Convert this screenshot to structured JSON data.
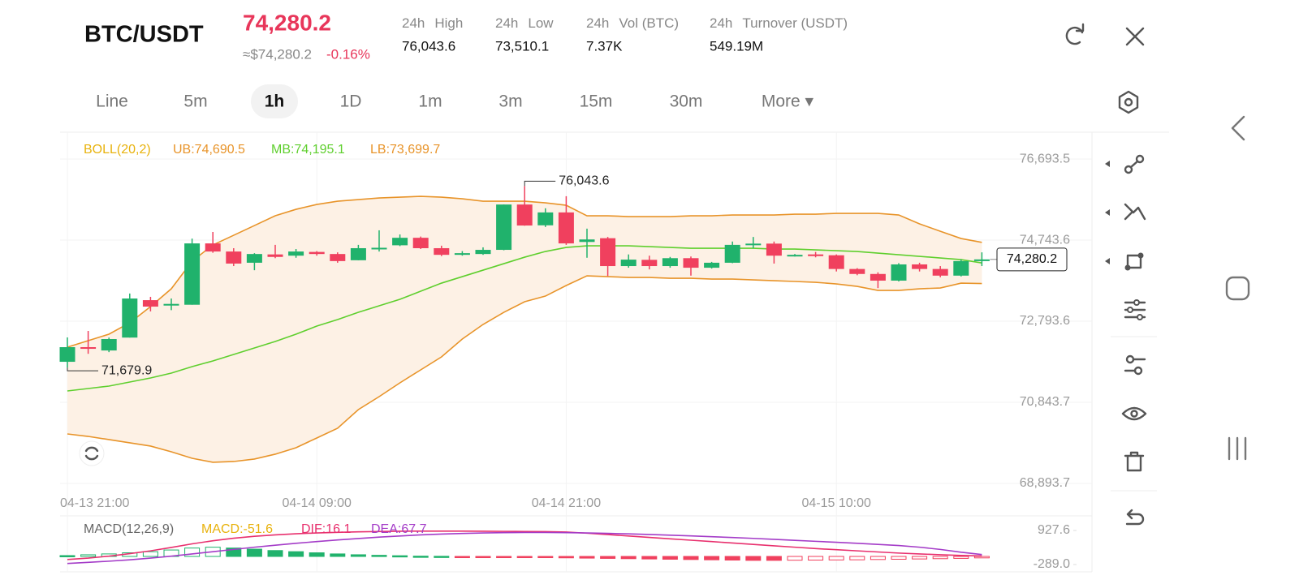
{
  "header": {
    "pair": "BTC/USDT",
    "price": "74,280.2",
    "approx": "≈$74,280.2",
    "change": "-0.16%",
    "stats": [
      {
        "label": "24h",
        "name": "High",
        "value": "76,043.6"
      },
      {
        "label": "24h",
        "name": "Low",
        "value": "73,510.1"
      },
      {
        "label": "24h",
        "name": "Vol (BTC)",
        "value": "7.37K"
      },
      {
        "label": "24h",
        "name": "Turnover (USDT)",
        "value": "549.19M"
      }
    ]
  },
  "tabs": [
    {
      "label": "Line"
    },
    {
      "label": "5m"
    },
    {
      "label": "1h",
      "active": true
    },
    {
      "label": "1D"
    },
    {
      "label": "1m"
    },
    {
      "label": "3m"
    },
    {
      "label": "15m"
    },
    {
      "label": "30m"
    },
    {
      "label": "More ▾"
    }
  ],
  "chart_data": {
    "type": "candlestick",
    "categories": [
      "04-13 21:00",
      null,
      null,
      null,
      null,
      null,
      null,
      null,
      null,
      null,
      null,
      null,
      "04-14 09:00",
      null,
      null,
      null,
      null,
      null,
      null,
      null,
      null,
      null,
      null,
      null,
      "04-14 21:00",
      null,
      null,
      null,
      null,
      null,
      null,
      null,
      null,
      null,
      null,
      null,
      null,
      "04-15 10:00",
      null,
      null,
      null,
      null,
      null,
      null,
      null
    ],
    "open": [
      71818,
      72170,
      72090,
      72400,
      73300,
      73170,
      73190,
      74665,
      74470,
      74200,
      74400,
      74370,
      74460,
      74410,
      74260,
      74530,
      74620,
      74800,
      74550,
      74390,
      74410,
      74510,
      75600,
      75100,
      75410,
      74700,
      74790,
      74120,
      74270,
      74120,
      74310,
      74080,
      74200,
      74630,
      74660,
      74370,
      74400,
      74380,
      74050,
      73930,
      73770,
      74160,
      74050,
      73890,
      74240
    ],
    "high": [
      72404,
      72560,
      72400,
      73460,
      73380,
      73340,
      74780,
      74940,
      74550,
      74430,
      74630,
      74530,
      74480,
      74450,
      74630,
      74980,
      74880,
      74830,
      74610,
      74480,
      74570,
      75600,
      76043.6,
      75510,
      75800,
      75020,
      74820,
      74400,
      74370,
      74340,
      74350,
      74220,
      74710,
      74820,
      74710,
      74410,
      74460,
      74400,
      74070,
      73970,
      74190,
      74200,
      74120,
      74280,
      74450
    ],
    "low": [
      71679.9,
      72010,
      72050,
      72400,
      73030,
      73060,
      73190,
      74440,
      74120,
      74020,
      74310,
      74320,
      74370,
      74200,
      74260,
      74470,
      74600,
      74530,
      74360,
      74370,
      74390,
      74500,
      75090,
      75060,
      74630,
      74320,
      73880,
      74080,
      74040,
      74080,
      73890,
      74060,
      74190,
      74550,
      74180,
      74350,
      74330,
      73990,
      73900,
      73590,
      73750,
      73990,
      73850,
      73870,
      74120
    ],
    "close": [
      72170,
      72130,
      72365,
      73340,
      73145,
      73210,
      74665,
      74470,
      74180,
      74410,
      74340,
      74470,
      74410,
      74240,
      74550,
      74560,
      74800,
      74550,
      74390,
      74430,
      74510,
      75600,
      75095,
      75410,
      74665,
      74760,
      74120,
      74275,
      74120,
      74310,
      74080,
      74200,
      74630,
      74660,
      74370,
      74390,
      74360,
      74050,
      73930,
      73770,
      74160,
      74050,
      73890,
      74240,
      74280.2
    ],
    "up_color": "#20b26c",
    "down_color": "#f0405e",
    "ylim": [
      68620,
      77300
    ],
    "yticks": [
      {
        "value": 68893.7,
        "label": "68,893.7"
      },
      {
        "value": 70843.7,
        "label": "70,843.7"
      },
      {
        "value": 72793.6,
        "label": "72,793.6"
      },
      {
        "value": 74743.6,
        "label": "74,743.6"
      },
      {
        "value": 76693.5,
        "label": "76,693.5"
      }
    ],
    "grid": true,
    "annotations": [
      {
        "index": 22,
        "field": "high",
        "label": "76,043.6"
      },
      {
        "index": 0,
        "field": "low",
        "label": "71,679.9"
      }
    ],
    "last_price_label": "74,280.2",
    "bollinger": {
      "title": "BOLL(20,2)",
      "title_color": "#e8b20c",
      "band_color": "#fdf1e5",
      "series": [
        {
          "label": "UB:74,690.5",
          "color": "#e8942a",
          "values": [
            72170,
            72326,
            72482,
            72755,
            73145,
            73574,
            74237,
            74627,
            74861,
            75095,
            75329,
            75485,
            75602,
            75680,
            75719,
            75758,
            75777,
            75797,
            75777,
            75738,
            75680,
            75680,
            75680,
            75641,
            75582,
            75329,
            75329,
            75310,
            75310,
            75310,
            75329,
            75329,
            75349,
            75349,
            75349,
            75368,
            75368,
            75388,
            75388,
            75388,
            75349,
            75134,
            74958,
            74783,
            74690.5
          ]
        },
        {
          "label": "MB:74,195.1",
          "color": "#5fcf2e",
          "values": [
            71117,
            71175,
            71234,
            71331,
            71429,
            71546,
            71702,
            71838,
            71994,
            72150,
            72306,
            72482,
            72677,
            72833,
            73008,
            73164,
            73320,
            73515,
            73710,
            73866,
            74022,
            74178,
            74334,
            74471,
            74568,
            74607,
            74607,
            74607,
            74588,
            74568,
            74549,
            74549,
            74549,
            74549,
            74529,
            74529,
            74510,
            74490,
            74471,
            74432,
            74393,
            74354,
            74315,
            74276,
            74195.1
          ]
        },
        {
          "label": "LB:73,699.7",
          "color": "#e8942a",
          "values": [
            70083,
            70024,
            69947,
            69869,
            69791,
            69654,
            69498,
            69401,
            69420,
            69479,
            69596,
            69752,
            69986,
            70220,
            70668,
            70980,
            71312,
            71624,
            71936,
            72365,
            72716,
            73008,
            73262,
            73398,
            73652,
            73886,
            73866,
            73847,
            73847,
            73827,
            73827,
            73808,
            73808,
            73788,
            73769,
            73750,
            73730,
            73691,
            73632,
            73535,
            73535,
            73574,
            73593,
            73710,
            73699.7
          ]
        }
      ]
    },
    "macd": {
      "title": "MACD(12,26,9)",
      "ylim": [
        -463,
        1333
      ],
      "yticks": [
        {
          "value": -289,
          "label": "-289.0"
        },
        927.6
      ],
      "histogram": {
        "label": "MACD:-51.6",
        "color": "#e8b20c",
        "values": [
          30,
          60,
          90,
          130,
          170,
          230,
          300,
          330,
          300,
          260,
          210,
          170,
          130,
          90,
          60,
          40,
          25,
          10,
          5,
          -5,
          -10,
          -20,
          -30,
          -40,
          -50,
          -60,
          -70,
          -80,
          -90,
          -100,
          -110,
          -120,
          -130,
          -140,
          -140,
          -135,
          -130,
          -125,
          -120,
          -110,
          -100,
          -90,
          -80,
          -70,
          -51.6
        ]
      },
      "dif": {
        "label": "DIF:16.1",
        "color": "#e8306e",
        "values": [
          -110,
          -60,
          10,
          100,
          200,
          320,
          450,
          560,
          650,
          720,
          770,
          810,
          840,
          860,
          880,
          890,
          900,
          905,
          905,
          905,
          900,
          895,
          890,
          885,
          870,
          830,
          780,
          730,
          680,
          630,
          580,
          530,
          480,
          430,
          380,
          330,
          280,
          240,
          200,
          160,
          120,
          90,
          60,
          35,
          16.1
        ]
      },
      "dea": {
        "label": "DEA:67.7",
        "color": "#a43cc8",
        "values": [
          -250,
          -210,
          -170,
          -120,
          -60,
          10,
          90,
          170,
          250,
          330,
          400,
          470,
          530,
          590,
          640,
          690,
          730,
          770,
          800,
          820,
          840,
          850,
          855,
          855,
          850,
          840,
          825,
          805,
          785,
          760,
          735,
          705,
          675,
          645,
          610,
          575,
          540,
          505,
          470,
          430,
          390,
          330,
          250,
          150,
          67.7
        ]
      }
    }
  }
}
